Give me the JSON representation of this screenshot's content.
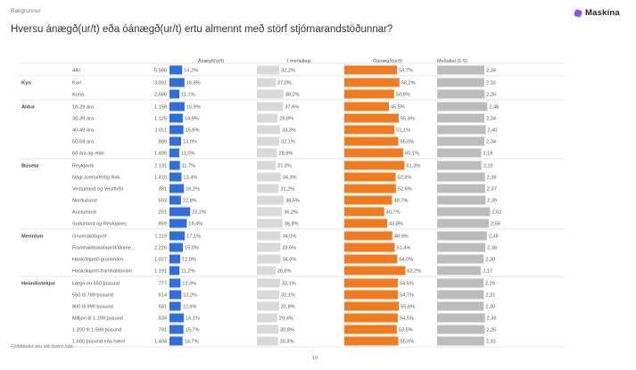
{
  "header": {
    "eyebrow": "Bakgrunnur",
    "title": "Hversu ánægð(ur/t) eða óánægð(ur/t) ertu almennt með störf stjórnarandstöðunnar?",
    "logo_text": "Maskína"
  },
  "colors": {
    "satisfied": "#2f6fdc",
    "neutral": "#d9d9d9",
    "dissatisfied": "#f07c22",
    "mean": "#bcbcbc",
    "separator": "#dddddd"
  },
  "footer": {
    "footnote": "Fjöldatölur eru við hvern hóp.",
    "page_number": "10"
  },
  "chart_data": {
    "type": "bar",
    "title": "Hversu ánægð(ur/t) eða óánægð(ur/t) ertu almennt með störf stjórnarandstöðunnar?",
    "columns": [
      "Ánægð(ur/t)",
      "Í meðallagi",
      "Óánægð(ur/t)",
      "Meðaltal (1-5)"
    ],
    "mean_range": [
      0,
      5
    ],
    "groups": [
      {
        "name": "",
        "rows": [
          {
            "label": "Allir",
            "n": "5.588",
            "satisfied": 14.2,
            "neutral": 32.2,
            "dissatisfied": 53.7,
            "mean": 2.34
          }
        ]
      },
      {
        "name": "Kyn",
        "rows": [
          {
            "label": "Karl",
            "n": "3.001",
            "satisfied": 16.8,
            "neutral": 27.0,
            "dissatisfied": 56.2,
            "mean": 2.33
          },
          {
            "label": "Kona",
            "n": "2.586",
            "satisfied": 11.1,
            "neutral": 38.2,
            "dissatisfied": 50.8,
            "mean": 2.35
          }
        ]
      },
      {
        "name": "Aldur",
        "rows": [
          {
            "label": "18-29 ára",
            "n": "1.158",
            "satisfied": 16.9,
            "neutral": 37.6,
            "dissatisfied": 45.5,
            "mean": 2.48
          },
          {
            "label": "30-39 ára",
            "n": "1.125",
            "satisfied": 14.9,
            "neutral": 29.8,
            "dissatisfied": 55.4,
            "mean": 2.34
          },
          {
            "label": "40-49 ára",
            "n": "1.011",
            "satisfied": 15.6,
            "neutral": 33.3,
            "dissatisfied": 51.1,
            "mean": 2.4
          },
          {
            "label": "50-59 ára",
            "n": "889",
            "satisfied": 13.0,
            "neutral": 32.1,
            "dissatisfied": 55.0,
            "mean": 2.34
          },
          {
            "label": "60 ára og eldri",
            "n": "1.405",
            "satisfied": 11.0,
            "neutral": 28.9,
            "dissatisfied": 60.1,
            "mean": 2.18
          }
        ]
      },
      {
        "name": "Búseta",
        "rows": [
          {
            "label": "Reykjavík",
            "n": "2.131",
            "satisfied": 11.7,
            "neutral": 27.0,
            "dissatisfied": 61.3,
            "mean": 2.19
          },
          {
            "label": "Nágr.sveitarfélög Rvk.",
            "n": "1.410",
            "satisfied": 13.4,
            "neutral": 34.3,
            "dissatisfied": 52.3,
            "mean": 2.36
          },
          {
            "label": "Vesturland og Vestfirðir",
            "n": "381",
            "satisfied": 16.2,
            "neutral": 31.2,
            "dissatisfied": 52.6,
            "mean": 2.37
          },
          {
            "label": "Norðurland",
            "n": "593",
            "satisfied": 12.8,
            "neutral": 38.5,
            "dissatisfied": 48.7,
            "mean": 2.39
          },
          {
            "label": "Austurland",
            "n": "201",
            "satisfied": 23.2,
            "neutral": 36.2,
            "dissatisfied": 40.7,
            "mean": 2.62
          },
          {
            "label": "Suðurland og Reykjanes",
            "n": "859",
            "satisfied": 19.4,
            "neutral": 36.8,
            "dissatisfied": 43.8,
            "mean": 2.56
          }
        ]
      },
      {
        "name": "Menntun",
        "rows": [
          {
            "label": "Grunnskólapróf",
            "n": "1.119",
            "satisfied": 17.1,
            "neutral": 34.0,
            "dissatisfied": 48.9,
            "mean": 2.46
          },
          {
            "label": "Framhaldsskólapróf/iðnme...",
            "n": "2.226",
            "satisfied": 15.0,
            "neutral": 33.6,
            "dissatisfied": 51.4,
            "mean": 2.38
          },
          {
            "label": "Háskólapróf-grunnnám",
            "n": "1.027",
            "satisfied": 12.0,
            "neutral": 34.0,
            "dissatisfied": 54.0,
            "mean": 2.3
          },
          {
            "label": "Háskólapróf-framhaldsnám",
            "n": "1.191",
            "satisfied": 11.2,
            "neutral": 26.6,
            "dissatisfied": 62.2,
            "mean": 2.17
          }
        ]
      },
      {
        "name": "Heimilistekjur",
        "rows": [
          {
            "label": "Lægri en 550 þúsund",
            "n": "777",
            "satisfied": 12.3,
            "neutral": 33.1,
            "dissatisfied": 54.5,
            "mean": 2.29
          },
          {
            "label": "550 til 799 þúsund",
            "n": "614",
            "satisfied": 13.2,
            "neutral": 32.1,
            "dissatisfied": 54.7,
            "mean": 2.31
          },
          {
            "label": "800 til 999 þúsund",
            "n": "581",
            "satisfied": 12.6,
            "neutral": 31.8,
            "dissatisfied": 55.6,
            "mean": 2.3
          },
          {
            "label": "Milljón til 1.199 þúsund",
            "n": "534",
            "satisfied": 16.1,
            "neutral": 29.4,
            "dissatisfied": 54.5,
            "mean": 2.36
          },
          {
            "label": "1.200 til 1.599 þúsund",
            "n": "791",
            "satisfied": 15.7,
            "neutral": 30.8,
            "dissatisfied": 53.5,
            "mean": 2.35
          },
          {
            "label": "1.600 þúsund eða hærri",
            "n": "1.404",
            "satisfied": 14.7,
            "neutral": 30.3,
            "dissatisfied": 55.0,
            "mean": 2.33
          }
        ]
      }
    ]
  }
}
